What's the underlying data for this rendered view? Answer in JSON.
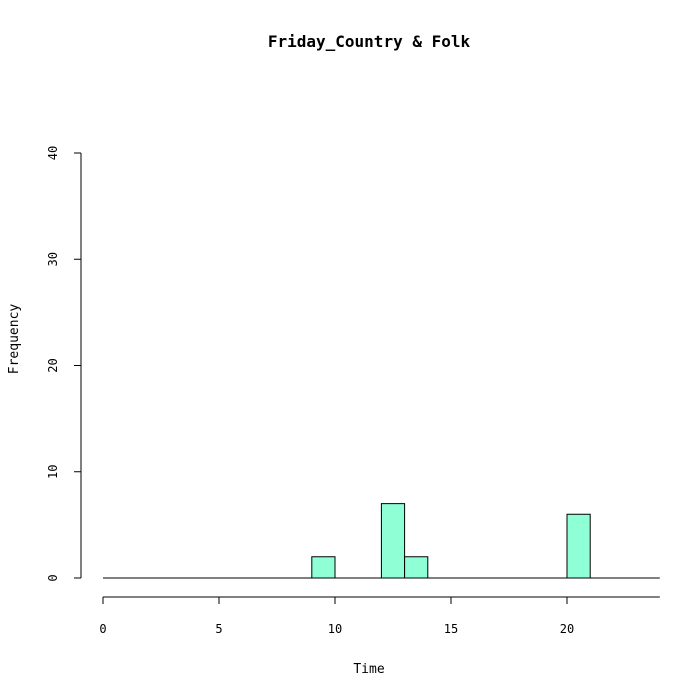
{
  "chart_data": {
    "type": "bar",
    "title": "Friday_Country & Folk",
    "xlabel": "Time",
    "ylabel": "Frequency",
    "xlim": [
      0,
      24
    ],
    "ylim": [
      0,
      40
    ],
    "x_ticks": [
      0,
      5,
      10,
      15,
      20
    ],
    "y_ticks": [
      0,
      10,
      20,
      30,
      40
    ],
    "bin_width": 1,
    "bins": [
      {
        "start": 9,
        "end": 10,
        "count": 2
      },
      {
        "start": 12,
        "end": 13,
        "count": 7
      },
      {
        "start": 13,
        "end": 14,
        "count": 2
      },
      {
        "start": 20,
        "end": 21,
        "count": 6
      }
    ],
    "baseline": [
      0,
      24
    ],
    "bar_color": "#8FFFD6",
    "bar_border_color": "#000000",
    "grid": false,
    "legend": "none"
  }
}
